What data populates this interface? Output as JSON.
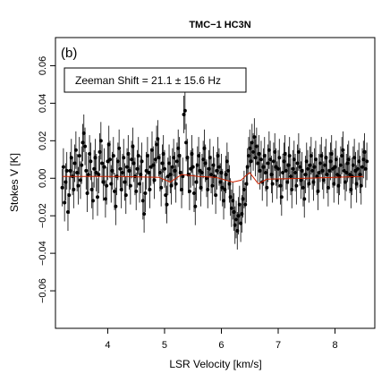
{
  "chart_data": {
    "type": "scatter",
    "title": "TMC−1 HC3N",
    "panel_label": "(b)",
    "annotation": "Zeeman Shift =  21.1 ± 15.6 Hz",
    "xlabel": "LSR Velocity [km/s]",
    "ylabel": "Stokes V [K]",
    "xlim": [
      3.08,
      8.7
    ],
    "ylim": [
      -0.08,
      0.075
    ],
    "x_ticks": [
      4,
      5,
      6,
      7,
      8
    ],
    "x_tick_labels": [
      "4",
      "5",
      "6",
      "7",
      "8"
    ],
    "y_ticks": [
      -0.06,
      -0.04,
      -0.02,
      0.0,
      0.02,
      0.04,
      0.06
    ],
    "y_tick_labels": [
      "−0.06",
      "−0.04",
      "−0.02",
      "0.00",
      "0.02",
      "0.04",
      "0.06"
    ],
    "grid": false,
    "series": [
      {
        "kind": "data_with_errorbars",
        "color": "#000000",
        "x_start": 3.2,
        "x_step": 0.02,
        "error": 0.01,
        "y": [
          -0.005,
          0.006,
          -0.013,
          -0.002,
          0.004,
          -0.018,
          -0.009,
          0.004,
          0.011,
          0.001,
          -0.006,
          0.008,
          0.015,
          0.003,
          -0.004,
          0.012,
          -0.001,
          0.007,
          0.019,
          0.024,
          0.017,
          0.004,
          -0.008,
          0.002,
          0.013,
          0.009,
          -0.006,
          -0.012,
          0.005,
          0.011,
          0.003,
          -0.01,
          0.002,
          0.014,
          0.02,
          0.008,
          -0.002,
          0.006,
          -0.011,
          -0.004,
          0.009,
          0.018,
          0.01,
          -0.003,
          0.004,
          0.012,
          -0.007,
          -0.015,
          0.001,
          0.009,
          0.016,
          0.005,
          -0.006,
          0.003,
          0.011,
          -0.002,
          -0.009,
          0.006,
          0.013,
          0.004,
          -0.004,
          0.01,
          0.017,
          0.008,
          0.001,
          -0.007,
          0.005,
          0.012,
          -0.003,
          0.002,
          0.009,
          -0.012,
          -0.019,
          -0.008,
          0.004,
          0.012,
          0.003,
          -0.006,
          0.006,
          0.015,
          0.007,
          -0.001,
          0.01,
          0.018,
          0.021,
          0.011,
          0.003,
          -0.005,
          0.008,
          0.013,
          0.005,
          -0.009,
          -0.014,
          0.001,
          0.008,
          0.002,
          -0.004,
          0.006,
          0.011,
          0.004,
          -0.003,
          0.009,
          0.016,
          0.012,
          0.003,
          -0.006,
          0.001,
          0.034,
          0.036,
          0.019,
          0.011,
          0.002,
          -0.007,
          0.005,
          0.013,
          0.006,
          -0.008,
          -0.015,
          -0.002,
          0.007,
          0.012,
          0.004,
          -0.005,
          0.003,
          0.01,
          0.016,
          0.008,
          0.0,
          -0.006,
          0.005,
          0.011,
          0.002,
          -0.004,
          0.007,
          0.001,
          -0.009,
          0.004,
          0.012,
          0.006,
          -0.002,
          0.003,
          -0.005,
          -0.012,
          -0.006,
          0.002,
          0.009,
          0.004,
          -0.003,
          -0.01,
          -0.016,
          -0.012,
          -0.018,
          -0.025,
          -0.022,
          -0.028,
          -0.02,
          -0.014,
          -0.024,
          -0.019,
          -0.011,
          -0.006,
          -0.014,
          -0.003,
          0.006,
          0.012,
          0.016,
          0.009,
          0.019,
          0.014,
          0.022,
          0.011,
          0.017,
          0.008,
          0.013,
          0.004,
          0.01,
          -0.002,
          0.006,
          0.012,
          0.003,
          -0.005,
          0.008,
          0.015,
          0.01,
          0.002,
          -0.003,
          0.009,
          0.014,
          0.006,
          -0.001,
          0.005,
          0.011,
          -0.004,
          -0.01,
          0.003,
          0.009,
          0.013,
          0.004,
          -0.002,
          0.007,
          0.012,
          0.001,
          -0.006,
          0.005,
          0.01,
          0.003,
          -0.004,
          0.008,
          0.014,
          0.006,
          -0.001,
          0.004,
          -0.005,
          -0.011,
          0.002,
          0.009,
          0.005,
          -0.003,
          0.007,
          0.012,
          0.004,
          -0.002,
          0.006,
          0.01,
          0.001,
          -0.007,
          0.003,
          0.008,
          0.012,
          0.004,
          -0.001,
          0.007,
          0.011,
          0.002,
          -0.005,
          0.004,
          0.009,
          0.013,
          0.005,
          -0.003,
          0.006,
          0.01,
          0.002,
          -0.004,
          0.001,
          0.007,
          0.012,
          0.015,
          0.004,
          -0.002,
          0.003,
          0.008,
          0.01,
          0.002,
          -0.006,
          0.001,
          0.007,
          0.011,
          0.004,
          -0.003,
          0.005,
          0.009,
          0.002,
          -0.004,
          0.006,
          0.01,
          0.014,
          0.005,
          0.009
        ]
      },
      {
        "kind": "fit",
        "color": "#cc2200",
        "x": [
          3.2,
          4.2,
          4.9,
          5.1,
          5.3,
          5.6,
          5.9,
          6.2,
          6.35,
          6.45,
          6.5,
          6.55,
          6.65,
          6.8,
          7.5,
          8.5
        ],
        "y": [
          0.001,
          0.001,
          0.0005,
          -0.002,
          0.002,
          0.001,
          0.0005,
          -0.002,
          -0.001,
          0.002,
          0.003,
          0.001,
          -0.003,
          -0.0005,
          0.0,
          0.001
        ]
      }
    ]
  }
}
